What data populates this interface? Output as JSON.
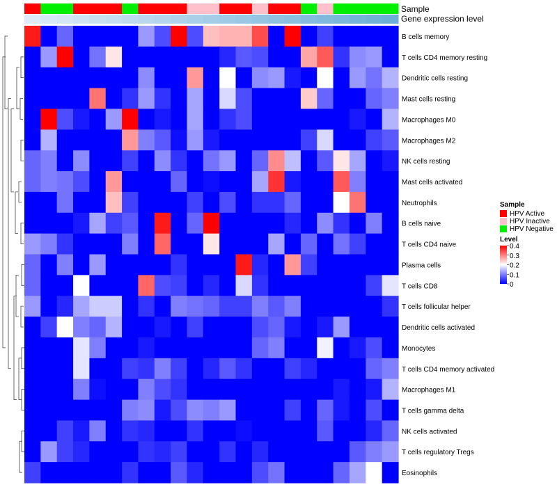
{
  "chart_data": {
    "type": "heatmap",
    "annotation_tracks": [
      "Sample",
      "Gene expression level"
    ],
    "rows": [
      "B cells memory",
      "T cells CD4 memory resting",
      "Dendritic cells resting",
      "Mast cells resting",
      "Macrophages M0",
      "Macrophages M2",
      "NK cells resting",
      "Mast cells activated",
      "Neutrophils",
      "B cells naive",
      "T cells CD4 naive",
      "Plasma cells",
      "T cells CD8",
      "T cells follicular helper",
      "Dendritic cells activated",
      "Monocytes",
      "T cells CD4 memory activated",
      "Macrophages M1",
      "T cells gamma delta",
      "NK cells activated",
      "T cells regulatory  Tregs",
      "Eosinophils"
    ],
    "samples": [
      "HPV Active",
      "HPV Negative",
      "HPV Negative",
      "HPV Active",
      "HPV Active",
      "HPV Active",
      "HPV Negative",
      "HPV Active",
      "HPV Active",
      "HPV Active",
      "HPV Inactive",
      "HPV Inactive",
      "HPV Active",
      "HPV Active",
      "HPV Inactive",
      "HPV Active",
      "HPV Active",
      "HPV Negative",
      "HPV Inactive",
      "HPV Negative",
      "HPV Negative",
      "HPV Negative",
      "HPV Negative"
    ],
    "gene_expression": [
      0.05,
      0.1,
      0.15,
      0.2,
      0.25,
      0.3,
      0.35,
      0.4,
      0.45,
      0.5,
      0.55,
      0.6,
      0.65,
      0.7,
      0.75,
      0.8,
      0.85,
      0.9,
      0.95,
      1.0,
      1.05,
      1.1,
      1.15
    ],
    "values": [
      [
        0.38,
        0,
        0.08,
        0,
        0,
        0,
        0,
        0.12,
        0.06,
        0.4,
        0.06,
        0.25,
        0.26,
        0.26,
        0.34,
        0,
        0.4,
        0,
        0.05,
        0,
        0,
        0,
        0
      ],
      [
        0,
        0.12,
        0.4,
        0,
        0.09,
        0.22,
        0,
        0,
        0,
        0,
        0,
        0,
        0.03,
        0.07,
        0.06,
        0,
        0,
        0.27,
        0.33,
        0.04,
        0.11,
        0.12,
        0
      ],
      [
        0,
        0,
        0,
        0,
        0,
        0,
        0,
        0.11,
        0,
        0,
        0.28,
        0,
        0.2,
        0,
        0.11,
        0.12,
        0.02,
        0,
        0.2,
        0,
        0.12,
        0.09,
        0.14
      ],
      [
        0,
        0,
        0,
        0,
        0.31,
        0,
        0.04,
        0.12,
        0.04,
        0,
        0.13,
        0,
        0.17,
        0.06,
        0,
        0,
        0,
        0.24,
        0.08,
        0,
        0,
        0.08,
        0.1
      ],
      [
        0,
        0.4,
        0.06,
        0.02,
        0,
        0.12,
        0.4,
        0,
        0.02,
        0,
        0.13,
        0,
        0.04,
        0.06,
        0,
        0,
        0,
        0,
        0,
        0,
        0.02,
        0,
        0.14
      ],
      [
        0,
        0.14,
        0,
        0,
        0,
        0,
        0.28,
        0.1,
        0.07,
        0.01,
        0.12,
        0.02,
        0,
        0,
        0,
        0,
        0,
        0.05,
        0.17,
        0,
        0,
        0.05,
        0.07
      ],
      [
        0.08,
        0.1,
        0,
        0.11,
        0,
        0,
        0.05,
        0,
        0.11,
        0.04,
        0,
        0.09,
        0.12,
        0,
        0.08,
        0.29,
        0.15,
        0,
        0.07,
        0.22,
        0.13,
        0,
        0.02
      ],
      [
        0.08,
        0.1,
        0.09,
        0.06,
        0,
        0.28,
        0,
        0,
        0,
        0.08,
        0,
        0.01,
        0,
        0,
        0.13,
        0.36,
        0.02,
        0,
        0,
        0.33,
        0.1,
        0,
        0
      ],
      [
        0,
        0,
        0.09,
        0,
        0,
        0.25,
        0.05,
        0,
        0,
        0,
        0.05,
        0,
        0.06,
        0,
        0.04,
        0.04,
        0.08,
        0,
        0,
        0.2,
        0.31,
        0,
        0
      ],
      [
        0,
        0,
        0,
        0.02,
        0.13,
        0.05,
        0.07,
        0,
        0.38,
        0,
        0.08,
        0.4,
        0,
        0,
        0,
        0,
        0.03,
        0,
        0.11,
        0.04,
        0,
        0.1,
        0
      ],
      [
        0.12,
        0.1,
        0.04,
        0,
        0,
        0,
        0.1,
        0,
        0.32,
        0,
        0,
        0.22,
        0,
        0,
        0,
        0.13,
        0,
        0.08,
        0,
        0.09,
        0.05,
        0,
        0
      ],
      [
        0.08,
        0,
        0.1,
        0,
        0.12,
        0,
        0,
        0,
        0,
        0.04,
        0,
        0,
        0,
        0.38,
        0.03,
        0,
        0.28,
        0.05,
        0,
        0,
        0,
        0,
        0
      ],
      [
        0.08,
        0,
        0,
        0.2,
        0,
        0,
        0,
        0.32,
        0.06,
        0.05,
        0,
        0.03,
        0,
        0.17,
        0.04,
        0,
        0,
        0,
        0,
        0,
        0,
        0.05,
        0.18
      ],
      [
        0.12,
        0,
        0.03,
        0.13,
        0.16,
        0.16,
        0,
        0.04,
        0,
        0.1,
        0.09,
        0.08,
        0.05,
        0.05,
        0.1,
        0.07,
        0.1,
        0,
        0,
        0,
        0,
        0,
        0.04
      ],
      [
        0,
        0.05,
        0.2,
        0.1,
        0.08,
        0.14,
        0,
        0,
        0.02,
        0,
        0.05,
        0,
        0,
        0,
        0.06,
        0.08,
        0.02,
        0,
        0.02,
        0.12,
        0,
        0,
        0
      ],
      [
        0,
        0,
        0,
        0.18,
        0.1,
        0,
        0,
        0.02,
        0,
        0,
        0,
        0,
        0,
        0,
        0.08,
        0.1,
        0,
        0,
        0.19,
        0,
        0.02,
        0.06,
        0
      ],
      [
        0,
        0,
        0,
        0.18,
        0,
        0,
        0.05,
        0.04,
        0.1,
        0.05,
        0,
        0.03,
        0.07,
        0.04,
        0,
        0,
        0.05,
        0.03,
        0,
        0,
        0,
        0.08,
        0.1
      ],
      [
        0,
        0,
        0,
        0.1,
        0.01,
        0,
        0,
        0.1,
        0.06,
        0.04,
        0,
        0,
        0,
        0,
        0,
        0,
        0,
        0,
        0,
        0.02,
        0,
        0.02,
        0.14
      ],
      [
        0,
        0,
        0,
        0,
        0,
        0,
        0.1,
        0.11,
        0.02,
        0.06,
        0.11,
        0.1,
        0.12,
        0,
        0,
        0,
        0.05,
        0,
        0.08,
        0.02,
        0,
        0.06,
        0
      ],
      [
        0,
        0,
        0.05,
        0.02,
        0.1,
        0,
        0.04,
        0.03,
        0,
        0,
        0.04,
        0,
        0,
        0.01,
        0,
        0,
        0,
        0,
        0.07,
        0,
        0,
        0.03,
        0.08
      ],
      [
        0,
        0.12,
        0.05,
        0.03,
        0,
        0,
        0,
        0.04,
        0.03,
        0.05,
        0,
        0,
        0.04,
        0,
        0.03,
        0,
        0,
        0,
        0,
        0,
        0.07,
        0.1,
        0.12
      ],
      [
        0.05,
        0,
        0,
        0,
        0,
        0,
        0.04,
        0,
        0,
        0.07,
        0.03,
        0,
        0,
        0,
        0.06,
        0.09,
        0,
        0,
        0,
        0.08,
        0.13,
        0.2,
        0
      ]
    ],
    "legend": {
      "sample_title": "Sample",
      "sample_entries": [
        {
          "label": "HPV Active",
          "color": "#ff0000"
        },
        {
          "label": "HPV Inactive",
          "color": "#ffc0cb"
        },
        {
          "label": "HPV Negative",
          "color": "#00ee00"
        }
      ],
      "level_title": "Level",
      "level_ticks": [
        "0.4",
        "0.3",
        "0.2",
        "0.1",
        "0"
      ],
      "level_range": [
        0,
        0.4
      ],
      "position": "right"
    },
    "colors": {
      "low": "#0000ff",
      "mid": "#ffffff",
      "high": "#ff0000",
      "expr_low": "#deebf7",
      "expr_high": "#6baed6"
    }
  }
}
